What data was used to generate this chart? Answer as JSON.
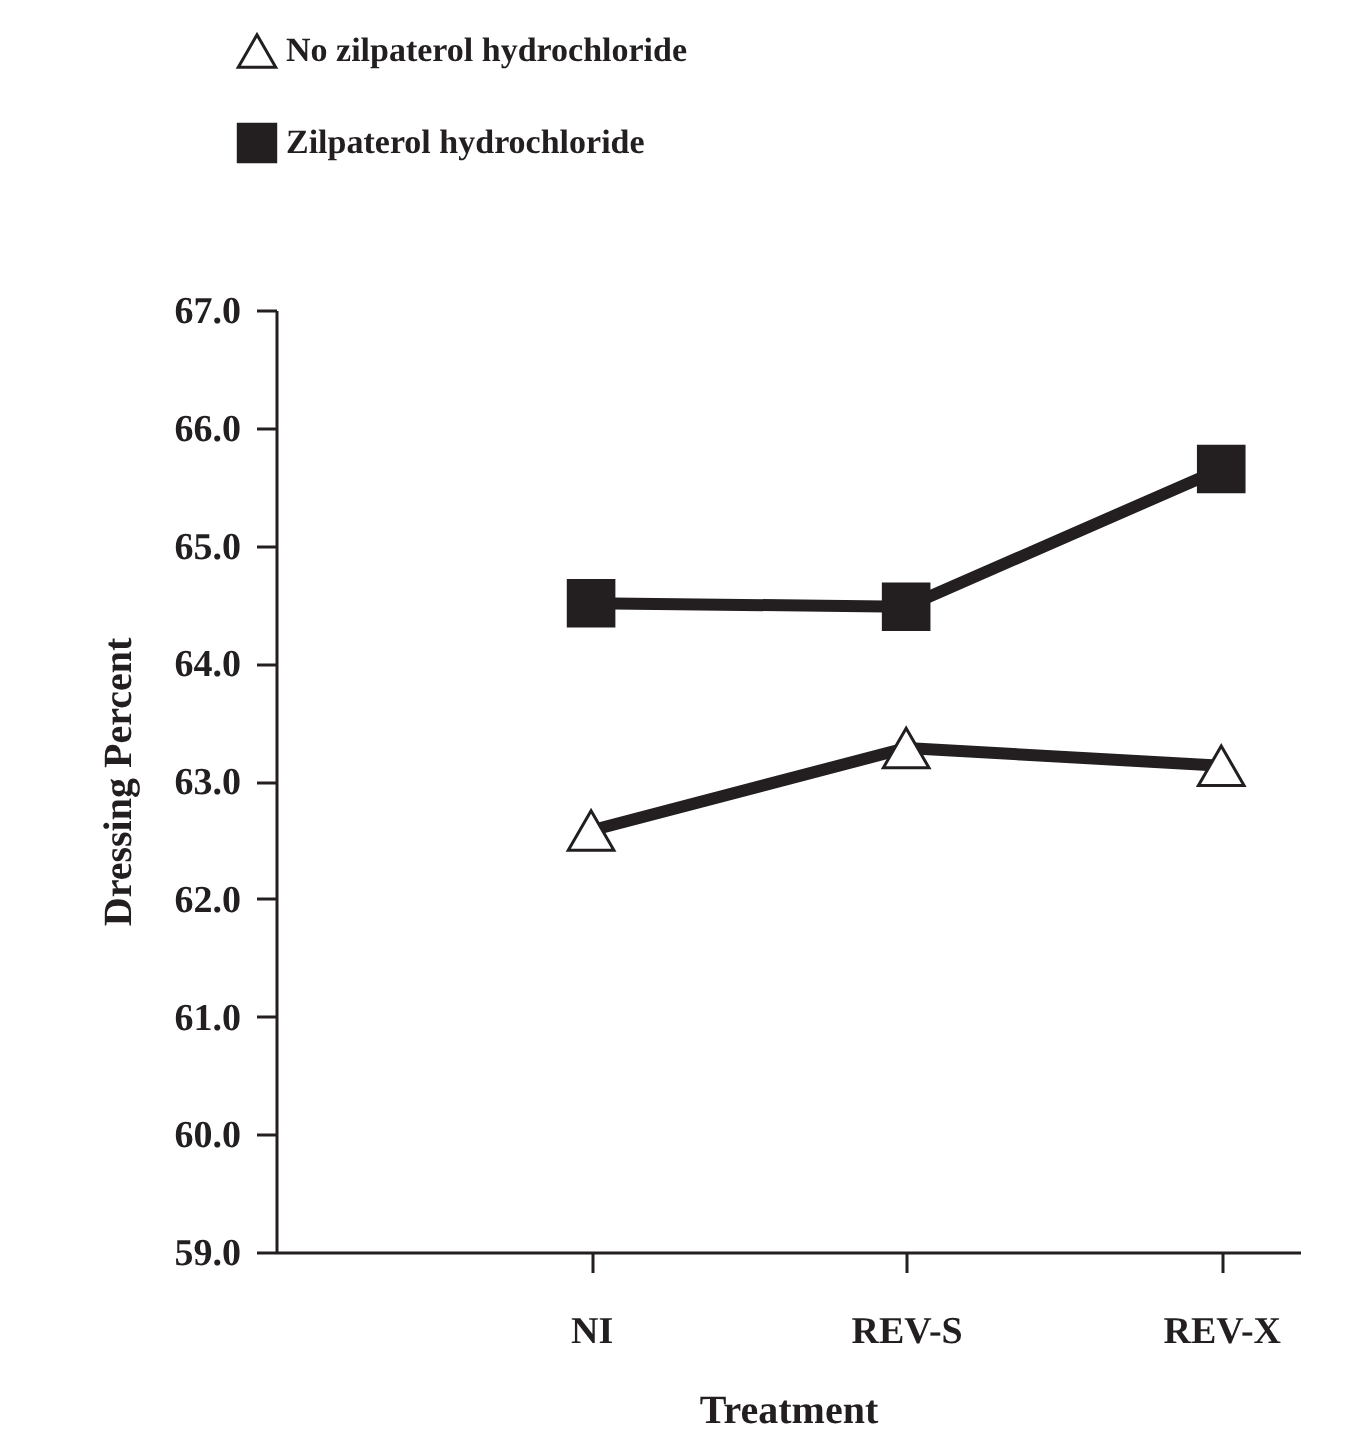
{
  "chart_data": {
    "type": "line",
    "xlabel": "Treatment",
    "ylabel": "Dressing Percent",
    "categories": [
      "NI",
      "REV-S",
      "REV-X"
    ],
    "series": [
      {
        "name": "No zilpaterol hydrochloride",
        "color": "#231f20",
        "marker": "triangle",
        "values": [
          62.58,
          63.28,
          63.13
        ]
      },
      {
        "name": "Zilpaterol hydrochloride",
        "color": "#231f20",
        "marker": "square",
        "values": [
          64.51,
          64.48,
          65.65
        ]
      }
    ],
    "ylim": [
      59,
      67
    ],
    "yticks": [
      {
        "value": 59,
        "label": "59.0"
      },
      {
        "value": 60,
        "label": "60.0"
      },
      {
        "value": 61,
        "label": "61.0"
      },
      {
        "value": 62,
        "label": "62.0"
      },
      {
        "value": 63,
        "label": "63.0"
      },
      {
        "value": 64,
        "label": "64.0"
      },
      {
        "value": 65,
        "label": "65.0"
      },
      {
        "value": 66,
        "label": "66.0"
      },
      {
        "value": 67,
        "label": "67.0"
      }
    ],
    "grid": false,
    "legend": "top left",
    "line_style": "solid"
  }
}
